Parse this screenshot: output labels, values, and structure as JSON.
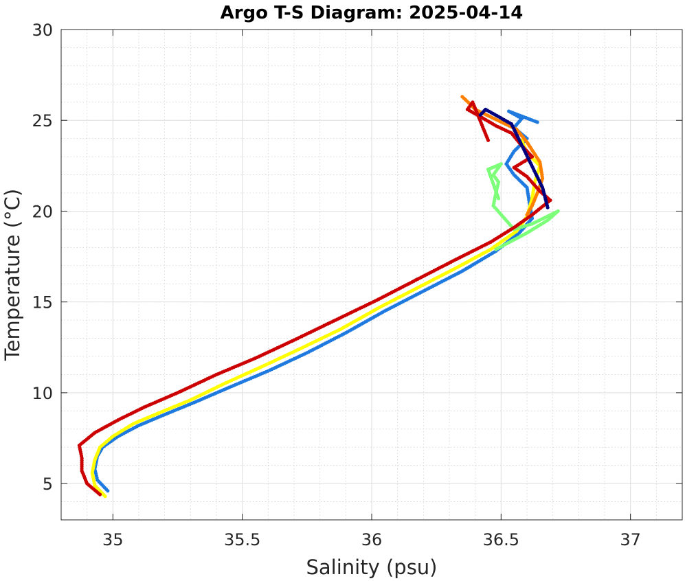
{
  "chart_data": {
    "type": "scatter",
    "title": "Argo T-S Diagram: 2025-04-14",
    "xlabel": "Salinity (psu)",
    "ylabel": "Temperature (°C)",
    "xlim": [
      34.8,
      37.2
    ],
    "ylim": [
      3,
      30
    ],
    "xticks": [
      35,
      35.5,
      36,
      36.5,
      37
    ],
    "xtick_labels": [
      "35",
      "35.5",
      "36",
      "36.5",
      "37"
    ],
    "yticks": [
      5,
      10,
      15,
      20,
      25,
      30
    ],
    "ytick_labels": [
      "5",
      "10",
      "15",
      "20",
      "25",
      "30"
    ],
    "grid": "major and minor",
    "legend": "none",
    "series": [
      {
        "color": "#1f7ae0",
        "points": [
          [
            34.98,
            4.6
          ],
          [
            34.94,
            5.2
          ],
          [
            34.93,
            5.8
          ],
          [
            34.94,
            6.5
          ],
          [
            34.96,
            7.0
          ],
          [
            35.02,
            7.6
          ],
          [
            35.1,
            8.2
          ],
          [
            35.2,
            8.8
          ],
          [
            35.32,
            9.5
          ],
          [
            35.45,
            10.3
          ],
          [
            35.6,
            11.2
          ],
          [
            35.75,
            12.2
          ],
          [
            35.9,
            13.3
          ],
          [
            36.05,
            14.5
          ],
          [
            36.2,
            15.6
          ],
          [
            36.35,
            16.7
          ],
          [
            36.48,
            17.8
          ],
          [
            36.57,
            18.8
          ],
          [
            36.62,
            19.6
          ],
          [
            36.61,
            20.4
          ],
          [
            36.6,
            21.3
          ],
          [
            36.55,
            22.0
          ],
          [
            36.52,
            22.6
          ],
          [
            36.55,
            23.3
          ],
          [
            36.6,
            24.0
          ],
          [
            36.55,
            24.6
          ],
          [
            36.58,
            25.1
          ],
          [
            36.53,
            25.5
          ],
          [
            36.64,
            24.9
          ]
        ]
      },
      {
        "color": "#ffff00",
        "points": [
          [
            34.97,
            4.3
          ],
          [
            34.93,
            4.9
          ],
          [
            34.92,
            5.6
          ],
          [
            34.93,
            6.3
          ],
          [
            34.95,
            7.0
          ],
          [
            35.0,
            7.6
          ],
          [
            35.08,
            8.3
          ],
          [
            35.18,
            8.9
          ],
          [
            35.3,
            9.6
          ],
          [
            35.43,
            10.5
          ],
          [
            35.57,
            11.4
          ],
          [
            35.72,
            12.4
          ],
          [
            35.88,
            13.5
          ],
          [
            36.03,
            14.7
          ],
          [
            36.18,
            15.8
          ],
          [
            36.33,
            16.9
          ],
          [
            36.46,
            17.9
          ],
          [
            36.56,
            18.9
          ],
          [
            36.6,
            19.7
          ],
          [
            36.62,
            20.7
          ],
          [
            36.63,
            21.6
          ],
          [
            36.65,
            22.5
          ],
          [
            36.6,
            23.2
          ],
          [
            36.58,
            23.9
          ]
        ]
      },
      {
        "color": "#7dff7a",
        "points": [
          [
            36.48,
            17.9
          ],
          [
            36.6,
            18.8
          ],
          [
            36.68,
            19.5
          ],
          [
            36.72,
            20.0
          ],
          [
            36.62,
            19.3
          ],
          [
            36.55,
            19.0
          ],
          [
            36.47,
            20.3
          ],
          [
            36.48,
            21.0
          ],
          [
            36.49,
            21.6
          ],
          [
            36.47,
            22.0
          ],
          [
            36.5,
            22.6
          ],
          [
            36.45,
            22.3
          ],
          [
            36.49,
            20.7
          ]
        ]
      },
      {
        "color": "#ff8000",
        "points": [
          [
            36.35,
            26.3
          ],
          [
            36.38,
            25.9
          ],
          [
            36.4,
            25.6
          ],
          [
            36.56,
            24.5
          ],
          [
            36.6,
            23.8
          ],
          [
            36.65,
            22.7
          ],
          [
            36.66,
            21.8
          ],
          [
            36.64,
            21.0
          ],
          [
            36.62,
            20.3
          ],
          [
            36.6,
            19.8
          ]
        ]
      },
      {
        "color": "#cc0000",
        "points": [
          [
            34.95,
            4.4
          ],
          [
            34.9,
            5.0
          ],
          [
            34.88,
            5.7
          ],
          [
            34.88,
            6.4
          ],
          [
            34.87,
            7.1
          ],
          [
            34.93,
            7.8
          ],
          [
            35.02,
            8.5
          ],
          [
            35.12,
            9.2
          ],
          [
            35.25,
            10.0
          ],
          [
            35.4,
            11.0
          ],
          [
            35.55,
            11.9
          ],
          [
            35.7,
            12.9
          ],
          [
            35.86,
            14.0
          ],
          [
            36.02,
            15.1
          ],
          [
            36.17,
            16.2
          ],
          [
            36.32,
            17.3
          ],
          [
            36.46,
            18.3
          ],
          [
            36.55,
            19.1
          ],
          [
            36.62,
            19.8
          ],
          [
            36.69,
            20.6
          ],
          [
            36.65,
            21.1
          ],
          [
            36.6,
            21.9
          ],
          [
            36.55,
            22.4
          ],
          [
            36.62,
            23.0
          ],
          [
            36.58,
            23.6
          ],
          [
            36.54,
            24.3
          ],
          [
            36.48,
            24.7
          ],
          [
            36.42,
            25.2
          ],
          [
            36.37,
            25.6
          ],
          [
            36.39,
            26.0
          ],
          [
            36.45,
            23.9
          ]
        ]
      },
      {
        "color": "#00007f",
        "points": [
          [
            36.42,
            25.3
          ],
          [
            36.44,
            25.6
          ],
          [
            36.54,
            24.8
          ],
          [
            36.66,
            21.3
          ],
          [
            36.68,
            20.2
          ]
        ]
      }
    ]
  }
}
